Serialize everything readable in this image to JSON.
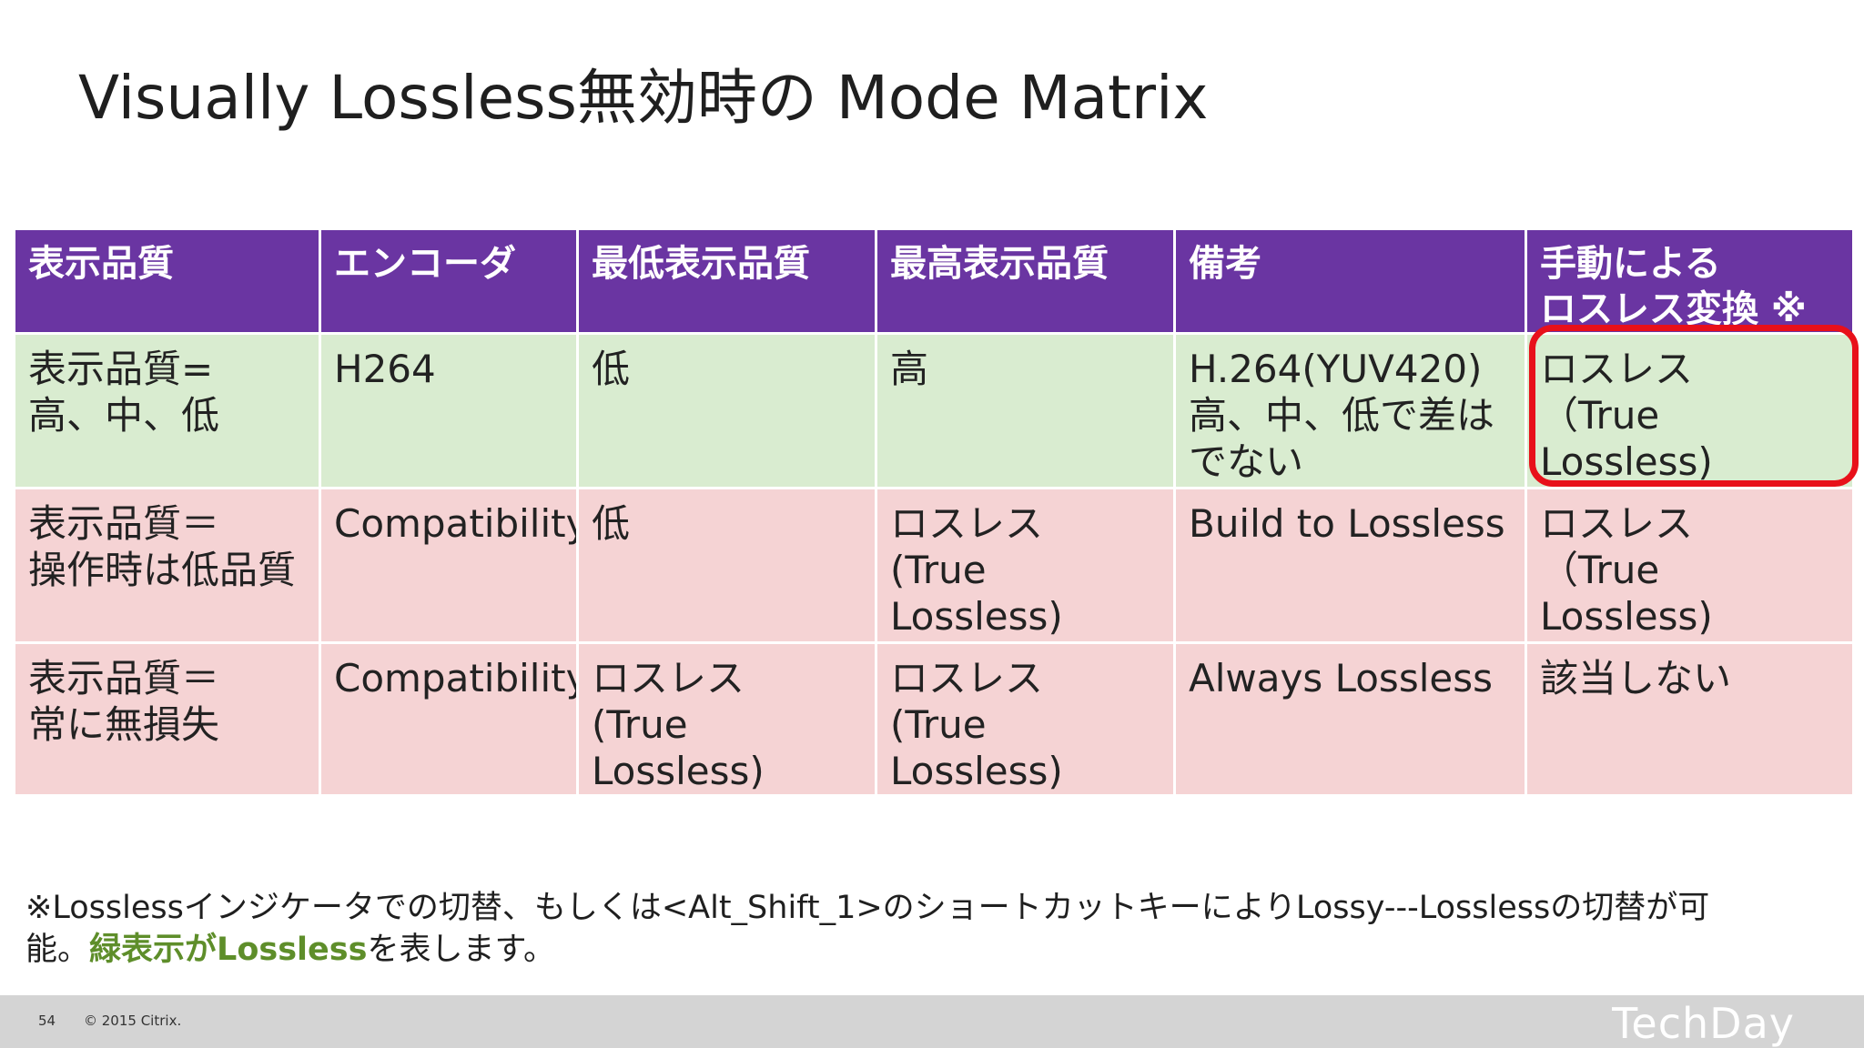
{
  "slide": {
    "title": "Visually Lossless無効時の Mode Matrix"
  },
  "table": {
    "headers": [
      "表示品質",
      "エンコーダ",
      "最低表示品質",
      "最高表示品質",
      "備考",
      "手動による\nロスレス変換 ※"
    ],
    "rows": [
      {
        "cells": [
          "表示品質=\n高、中、低",
          "H264",
          "低",
          "高",
          "H.264(YUV420)\n高、中、低で差は\nでない",
          "ロスレス\n（True Lossless)"
        ]
      },
      {
        "cells": [
          "表示品質＝\n操作時は低品質",
          "Compatibility",
          "低",
          "ロスレス\n(True Lossless)",
          "Build to Lossless",
          "ロスレス\n（True Lossless)"
        ]
      },
      {
        "cells": [
          "表示品質＝\n常に無損失",
          "Compatibility",
          "ロスレス\n(True Lossless)",
          "ロスレス\n(True Lossless)",
          "Always Lossless",
          "該当しない"
        ]
      }
    ]
  },
  "footnote": {
    "text_before": "※Losslessインジケータでの切替、もしくは<Alt_Shift_1>のショートカットキーによりLossy---Losslessの切替が可\n能。",
    "green_text": "緑表示がLossless",
    "text_after": "を表します。"
  },
  "footer": {
    "page_number": "54",
    "copyright": "© 2015 Citrix.",
    "logo_text": "TechDay"
  },
  "colors": {
    "header_bg": "#6a35a2",
    "green_row_bg": "#d9ecd0",
    "red_row_bg": "#f5d3d4",
    "highlight_border": "#e8101a",
    "footnote_green": "#5e8e2a"
  }
}
